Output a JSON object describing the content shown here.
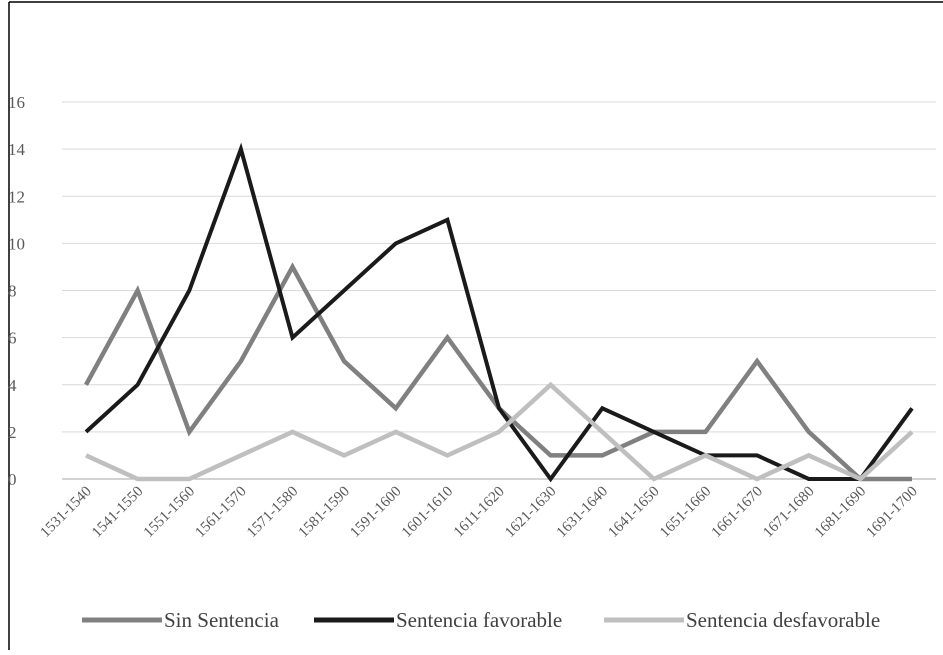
{
  "chart_data": {
    "type": "line",
    "title": "",
    "xlabel": "",
    "ylabel": "",
    "ylim": [
      0,
      16
    ],
    "yticks": [
      0,
      2,
      4,
      6,
      8,
      10,
      12,
      14,
      16
    ],
    "grid": true,
    "legend_position": "bottom",
    "categories": [
      "1531-1540",
      "1541-1550",
      "1551-1560",
      "1561-1570",
      "1571-1580",
      "1581-1590",
      "1591-1600",
      "1601-1610",
      "1611-1620",
      "1621-1630",
      "1631-1640",
      "1641-1650",
      "1651-1660",
      "1661-1670",
      "1671-1680",
      "1681-1690",
      "1691-1700"
    ],
    "series": [
      {
        "name": "Sin Sentencia",
        "color": "#808080",
        "values": [
          4,
          8,
          2,
          5,
          9,
          5,
          3,
          6,
          3,
          1,
          1,
          2,
          2,
          5,
          2,
          0,
          0
        ]
      },
      {
        "name": "Sentencia favorable",
        "color": "#1a1a1a",
        "values": [
          2,
          4,
          8,
          14,
          6,
          8,
          10,
          11,
          3,
          0,
          3,
          2,
          1,
          1,
          0,
          0,
          3
        ]
      },
      {
        "name": "Sentencia desfavorable",
        "color": "#bfbfbf",
        "values": [
          1,
          0,
          0,
          1,
          2,
          1,
          2,
          1,
          2,
          4,
          2,
          0,
          1,
          0,
          1,
          0,
          2
        ]
      }
    ]
  }
}
